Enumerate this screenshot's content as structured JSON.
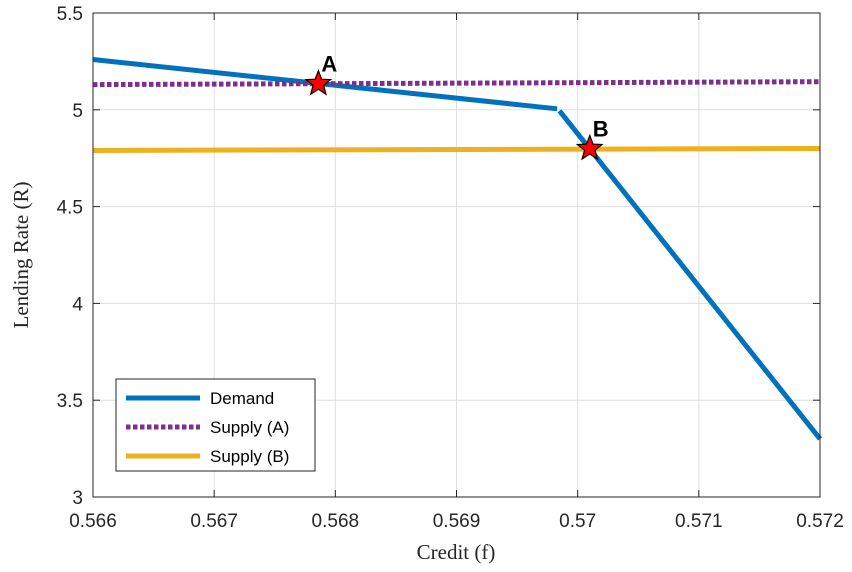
{
  "chart_data": {
    "type": "line",
    "xlabel": "Credit (f)",
    "ylabel": "Lending Rate (R)",
    "xlim": [
      0.566,
      0.572
    ],
    "ylim": [
      3,
      5.5
    ],
    "xticks": [
      "0.566",
      "0.567",
      "0.568",
      "0.569",
      "0.57",
      "0.571",
      "0.572"
    ],
    "yticks": [
      "3",
      "3.5",
      "4",
      "4.5",
      "5",
      "5.5"
    ],
    "grid": true,
    "legend_position": "bottom-left",
    "series": [
      {
        "name": "Demand",
        "color": "#0072BD",
        "style": "solid",
        "segments": [
          [
            [
              0.566,
              5.26
            ],
            [
              0.56983,
              5.005
            ]
          ],
          [
            [
              0.56985,
              4.995
            ],
            [
              0.572,
              3.3
            ]
          ]
        ]
      },
      {
        "name": "Supply (A)",
        "color": "#7E2F8E",
        "style": "dotted",
        "segments": [
          [
            [
              0.566,
              5.13
            ],
            [
              0.572,
              5.145
            ]
          ]
        ]
      },
      {
        "name": "Supply (B)",
        "color": "#EDB120",
        "style": "solid",
        "segments": [
          [
            [
              0.566,
              4.79
            ],
            [
              0.572,
              4.8
            ]
          ]
        ]
      }
    ],
    "points": [
      {
        "label": "A",
        "x": 0.56786,
        "y": 5.135,
        "color": "#FF0000"
      },
      {
        "label": "B",
        "x": 0.5701,
        "y": 4.8,
        "color": "#FF0000"
      }
    ]
  }
}
